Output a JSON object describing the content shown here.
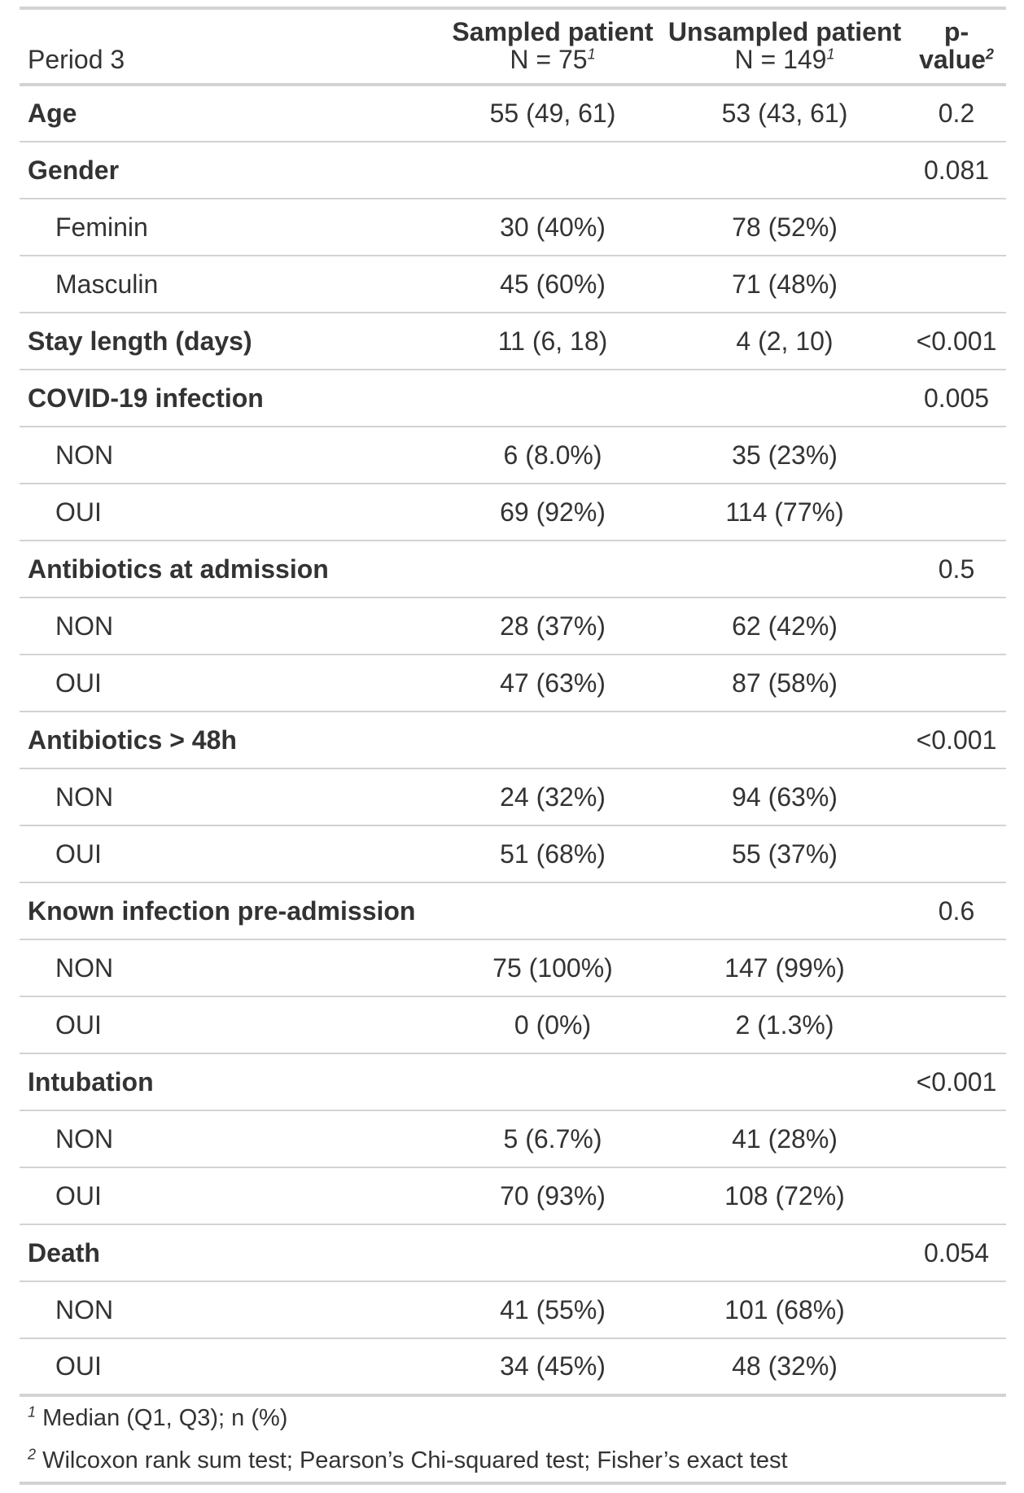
{
  "header": {
    "label": "Period 3",
    "col1_title": "Sampled patient",
    "col1_n": "N = 75",
    "col2_title": "Unsampled patient",
    "col2_n": "N = 149",
    "col3_title": "p-value",
    "fn1_marker": "1",
    "fn2_marker": "2"
  },
  "rows": [
    {
      "label": "Age",
      "type": "var",
      "sampled": "55 (49, 61)",
      "unsampled": "53 (43, 61)",
      "p": "0.2"
    },
    {
      "label": "Gender",
      "type": "var",
      "sampled": "",
      "unsampled": "",
      "p": "0.081"
    },
    {
      "label": "Feminin",
      "type": "level",
      "sampled": "30 (40%)",
      "unsampled": "78 (52%)",
      "p": ""
    },
    {
      "label": "Masculin",
      "type": "level",
      "sampled": "45 (60%)",
      "unsampled": "71 (48%)",
      "p": ""
    },
    {
      "label": "Stay length (days)",
      "type": "var",
      "sampled": "11 (6, 18)",
      "unsampled": "4 (2, 10)",
      "p": "<0.001"
    },
    {
      "label": "COVID-19 infection",
      "type": "var",
      "sampled": "",
      "unsampled": "",
      "p": "0.005"
    },
    {
      "label": "NON",
      "type": "level",
      "sampled": "6 (8.0%)",
      "unsampled": "35 (23%)",
      "p": ""
    },
    {
      "label": "OUI",
      "type": "level",
      "sampled": "69 (92%)",
      "unsampled": "114 (77%)",
      "p": ""
    },
    {
      "label": "Antibiotics at admission",
      "type": "var",
      "sampled": "",
      "unsampled": "",
      "p": "0.5"
    },
    {
      "label": "NON",
      "type": "level",
      "sampled": "28 (37%)",
      "unsampled": "62 (42%)",
      "p": ""
    },
    {
      "label": "OUI",
      "type": "level",
      "sampled": "47 (63%)",
      "unsampled": "87 (58%)",
      "p": ""
    },
    {
      "label": "Antibiotics > 48h",
      "type": "var",
      "sampled": "",
      "unsampled": "",
      "p": "<0.001"
    },
    {
      "label": "NON",
      "type": "level",
      "sampled": "24 (32%)",
      "unsampled": "94 (63%)",
      "p": ""
    },
    {
      "label": "OUI",
      "type": "level",
      "sampled": "51 (68%)",
      "unsampled": "55 (37%)",
      "p": ""
    },
    {
      "label": "Known infection pre-admission",
      "type": "var",
      "sampled": "",
      "unsampled": "",
      "p": "0.6"
    },
    {
      "label": "NON",
      "type": "level",
      "sampled": "75 (100%)",
      "unsampled": "147 (99%)",
      "p": ""
    },
    {
      "label": "OUI",
      "type": "level",
      "sampled": "0 (0%)",
      "unsampled": "2 (1.3%)",
      "p": ""
    },
    {
      "label": "Intubation",
      "type": "var",
      "sampled": "",
      "unsampled": "",
      "p": "<0.001"
    },
    {
      "label": "NON",
      "type": "level",
      "sampled": "5 (6.7%)",
      "unsampled": "41 (28%)",
      "p": ""
    },
    {
      "label": "OUI",
      "type": "level",
      "sampled": "70 (93%)",
      "unsampled": "108 (72%)",
      "p": ""
    },
    {
      "label": "Death",
      "type": "var",
      "sampled": "",
      "unsampled": "",
      "p": "0.054"
    },
    {
      "label": "NON",
      "type": "level",
      "sampled": "41 (55%)",
      "unsampled": "101 (68%)",
      "p": ""
    },
    {
      "label": "OUI",
      "type": "level",
      "sampled": "34 (45%)",
      "unsampled": "48 (32%)",
      "p": ""
    }
  ],
  "footnotes": [
    {
      "marker": "1",
      "text": "Median (Q1, Q3); n (%)"
    },
    {
      "marker": "2",
      "text": "Wilcoxon rank sum test; Pearson’s Chi-squared test; Fisher’s exact test"
    }
  ]
}
